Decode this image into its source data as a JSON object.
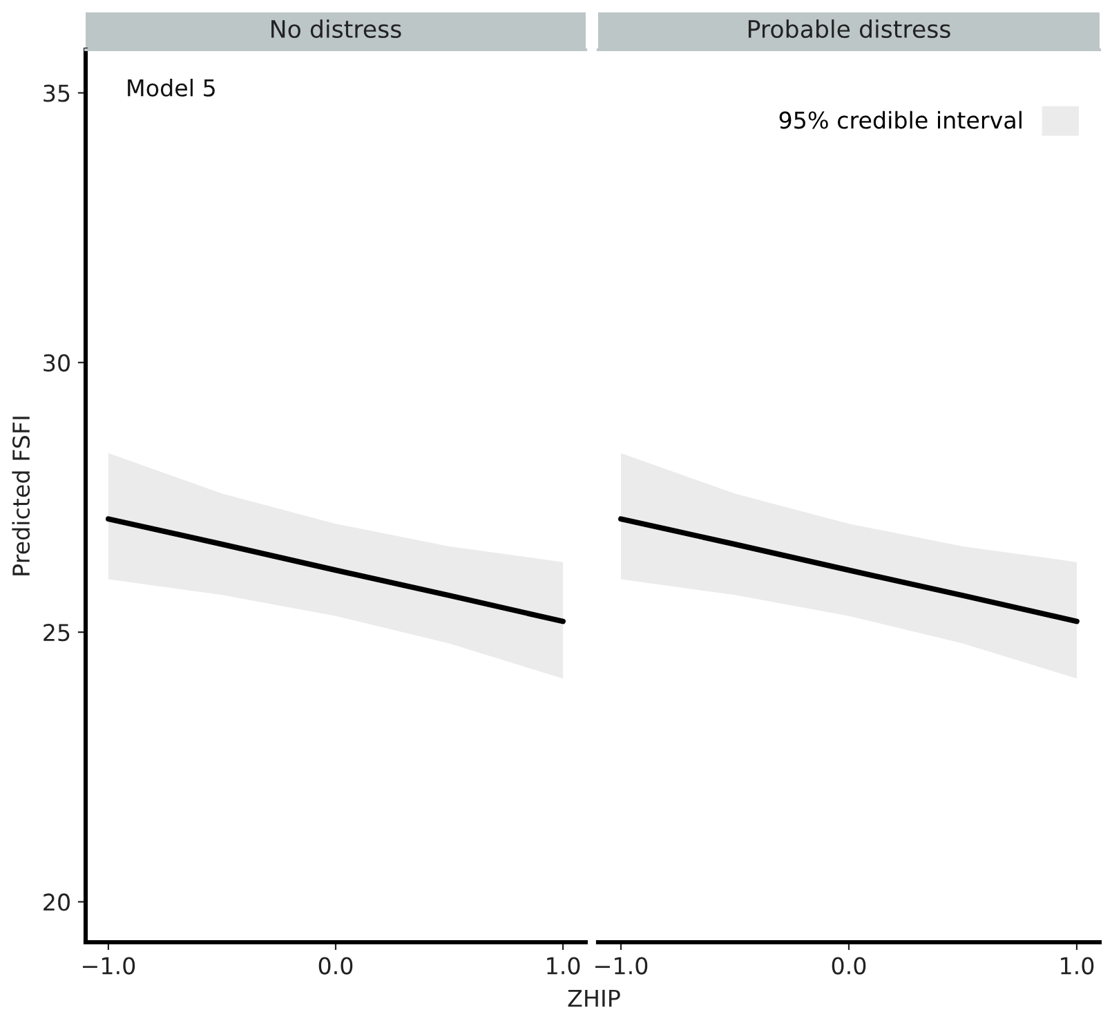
{
  "chart_data": [
    {
      "type": "line",
      "title": "No distress",
      "ylabel": "Predicted FSFI",
      "xlabel": "ZHIP",
      "annotations": [
        "Model 5"
      ],
      "x": [
        -1.0,
        -0.5,
        0.0,
        0.5,
        1.0
      ],
      "series": [
        {
          "color": "#000000",
          "values": [
            27.1,
            26.63,
            26.15,
            25.68,
            25.2
          ],
          "lower": [
            25.98,
            25.69,
            25.3,
            24.79,
            24.14
          ],
          "upper": [
            28.32,
            27.57,
            27.01,
            26.59,
            26.3
          ]
        }
      ],
      "xlim": [
        -1.1,
        1.1
      ],
      "xticks": [
        {
          "value": -1.0,
          "label": "−1.0"
        },
        {
          "value": 0.0,
          "label": "0.0"
        },
        {
          "value": 1.0,
          "label": "1.0"
        }
      ],
      "ylim": [
        19.25,
        35.8
      ],
      "yticks": [
        20,
        25,
        30,
        35
      ],
      "grid": false,
      "legend": false
    },
    {
      "type": "line",
      "title": "Probable distress",
      "x": [
        -1.0,
        -0.5,
        0.0,
        0.5,
        1.0
      ],
      "series": [
        {
          "name": "95% credible interval",
          "color": "#000000",
          "values": [
            27.1,
            26.63,
            26.15,
            25.68,
            25.2
          ],
          "lower": [
            25.98,
            25.69,
            25.3,
            24.79,
            24.14
          ],
          "upper": [
            28.32,
            27.57,
            27.01,
            26.59,
            26.3
          ]
        }
      ],
      "xlim": [
        -1.1,
        1.1
      ],
      "xticks": [
        {
          "value": -1.0,
          "label": "−1.0"
        },
        {
          "value": 0.0,
          "label": "0.0"
        },
        {
          "value": 1.0,
          "label": "1.0"
        }
      ],
      "ylim": [
        19.25,
        35.8
      ],
      "yticks": [
        20,
        25,
        30,
        35
      ],
      "tick_labels": "x",
      "grid": false,
      "legend": "top right"
    }
  ]
}
